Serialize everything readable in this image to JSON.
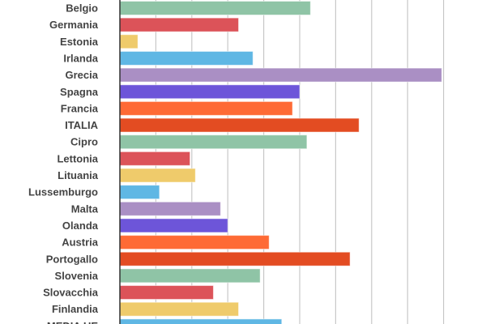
{
  "chart_data": {
    "type": "bar",
    "orientation": "horizontal",
    "categories": [
      "Belgio",
      "Germania",
      "Estonia",
      "Irlanda",
      "Grecia",
      "Spagna",
      "Francia",
      "ITALIA",
      "Cipro",
      "Lettonia",
      "Lituania",
      "Lussemburgo",
      "Malta",
      "Olanda",
      "Austria",
      "Portogallo",
      "Slovenia",
      "Slovacchia",
      "Finlandia",
      "MEDIA UE"
    ],
    "values": [
      106,
      66,
      10,
      74,
      179,
      100,
      96,
      133,
      104,
      39,
      42,
      22,
      56,
      60,
      83,
      128,
      78,
      52,
      66,
      90
    ],
    "xlim": [
      0,
      180
    ],
    "grid": true,
    "colors": [
      "#8fc4a6",
      "#dc5359",
      "#efcb6b",
      "#5fb7e4",
      "#aa8fc4",
      "#6d55d9",
      "#fe6a35",
      "#e34c22"
    ]
  }
}
